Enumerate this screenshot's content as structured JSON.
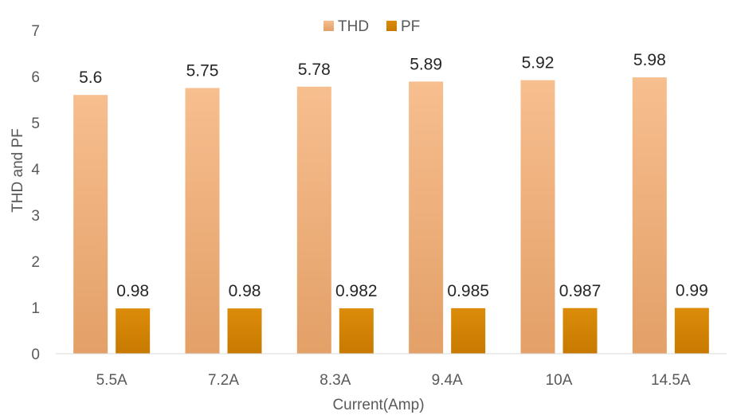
{
  "chart_data": {
    "type": "bar",
    "title": "",
    "xlabel": "Current(Amp)",
    "ylabel": "THD and PF",
    "categories": [
      "5.5A",
      "7.2A",
      "8.3A",
      "9.4A",
      "10A",
      "14.5A"
    ],
    "series": [
      {
        "name": "THD",
        "values": [
          5.6,
          5.75,
          5.78,
          5.89,
          5.92,
          5.98
        ],
        "labels": [
          "5.6",
          "5.75",
          "5.78",
          "5.89",
          "5.92",
          "5.98"
        ],
        "color_top": "#f7be8f",
        "color_bottom": "#e3a067"
      },
      {
        "name": "PF",
        "values": [
          0.98,
          0.98,
          0.982,
          0.985,
          0.987,
          0.99
        ],
        "labels": [
          "0.98",
          "0.98",
          "0.982",
          "0.985",
          "0.987",
          "0.99"
        ],
        "color_top": "#dc8c0a",
        "color_bottom": "#c77a00"
      }
    ],
    "ylim": [
      0,
      7
    ],
    "yticks": [
      0,
      1,
      2,
      3,
      4,
      5,
      6,
      7
    ],
    "grid": false,
    "legend": "top-center"
  }
}
